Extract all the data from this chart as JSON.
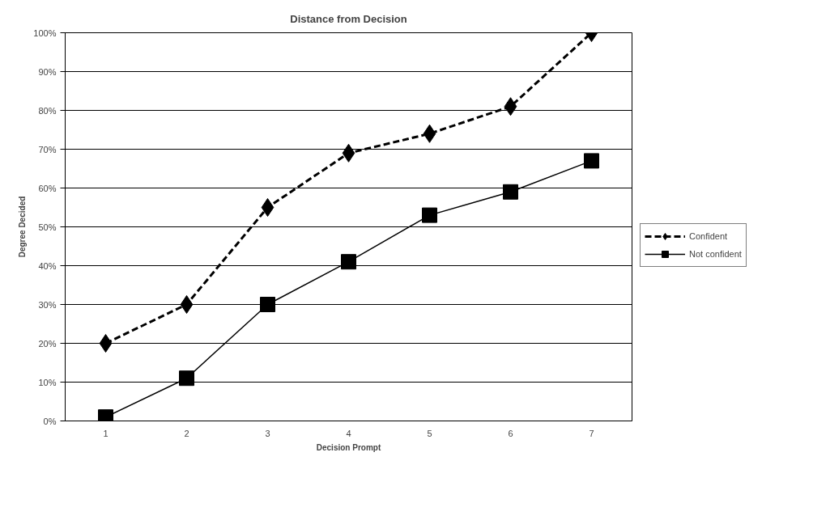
{
  "chart_data": {
    "type": "line",
    "title": "Distance from Decision",
    "xlabel": "Decision Prompt",
    "ylabel": "Degree Decided",
    "categories": [
      "1",
      "2",
      "3",
      "4",
      "5",
      "6",
      "7"
    ],
    "ylim": [
      0,
      100
    ],
    "yticks": [
      {
        "value": 0,
        "label": "0%"
      },
      {
        "value": 10,
        "label": "10%"
      },
      {
        "value": 20,
        "label": "20%"
      },
      {
        "value": 30,
        "label": "30%"
      },
      {
        "value": 40,
        "label": "40%"
      },
      {
        "value": 50,
        "label": "50%"
      },
      {
        "value": 60,
        "label": "60%"
      },
      {
        "value": 70,
        "label": "70%"
      },
      {
        "value": 80,
        "label": "80%"
      },
      {
        "value": 90,
        "label": "90%"
      },
      {
        "value": 100,
        "label": "100%"
      }
    ],
    "grid": "y",
    "legend": "right",
    "series": [
      {
        "name": "Confident",
        "color": "#000000",
        "marker": "diamond",
        "line_style": "dashed",
        "values": [
          20,
          30,
          55,
          69,
          74,
          81,
          100
        ]
      },
      {
        "name": "Not confident",
        "color": "#000000",
        "marker": "square",
        "line_style": "solid",
        "values": [
          1,
          11,
          30,
          41,
          53,
          59,
          67
        ]
      }
    ]
  }
}
